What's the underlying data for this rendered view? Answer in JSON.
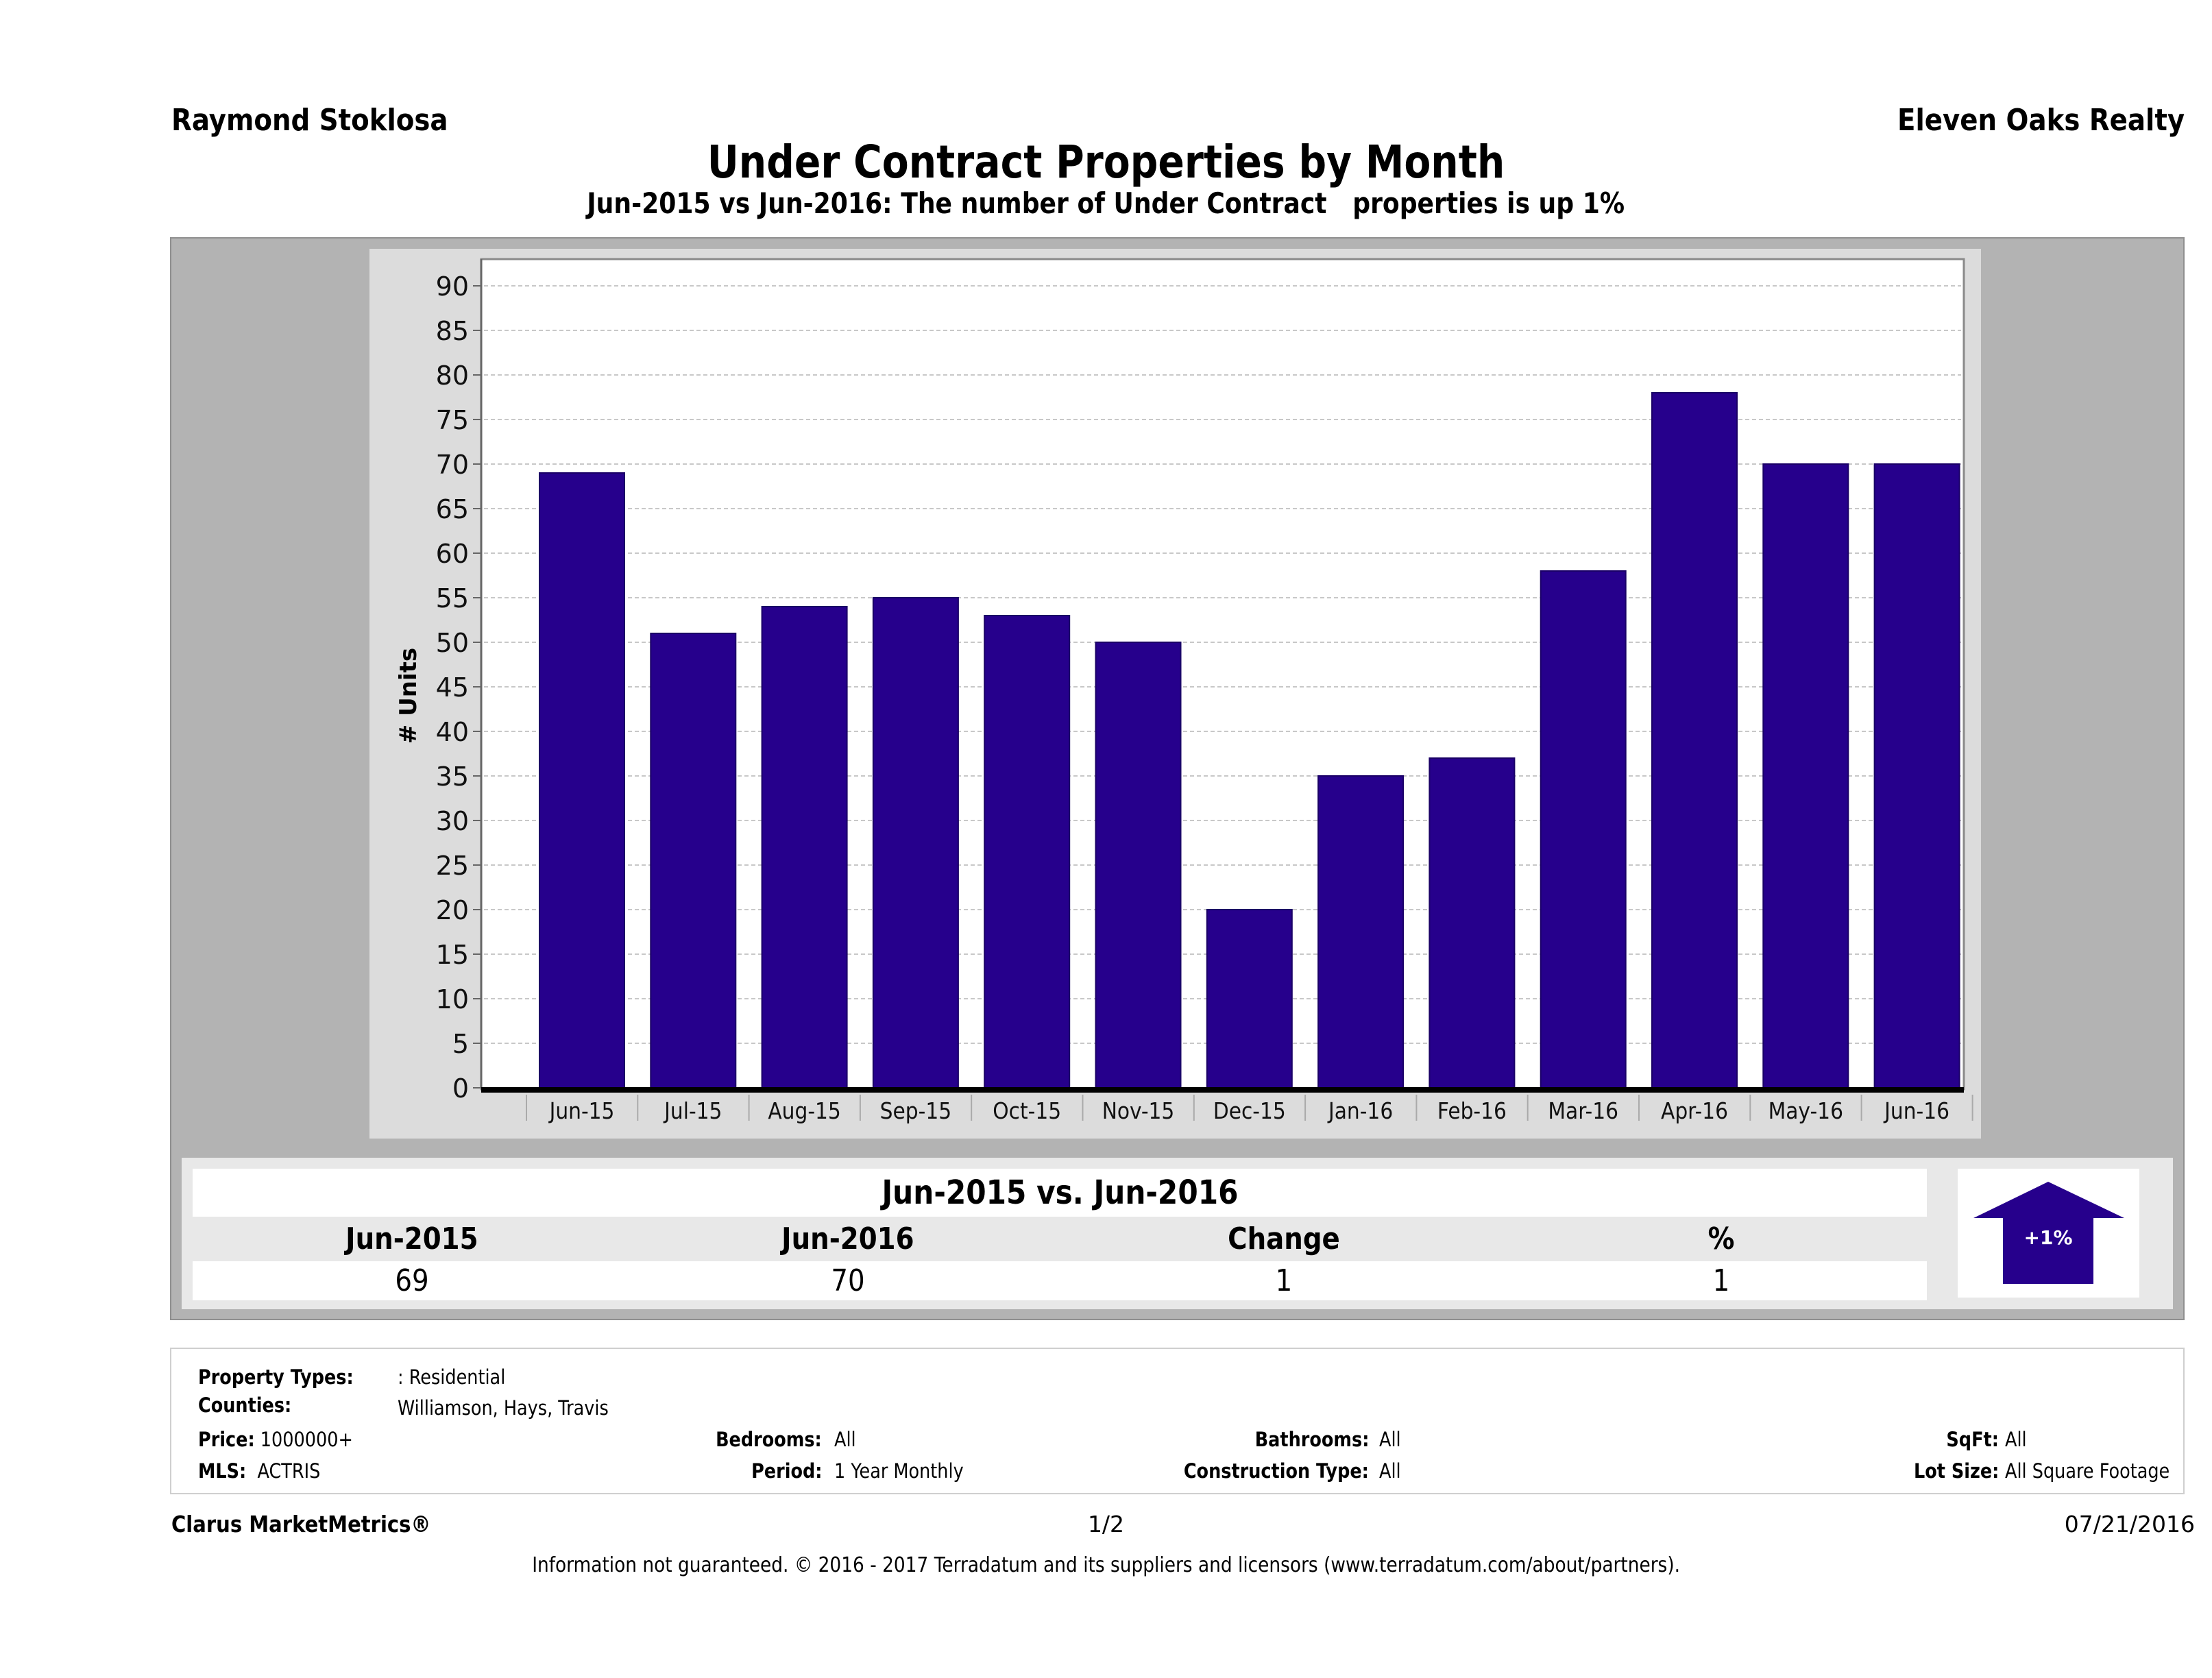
{
  "header": {
    "agent_name": "Raymond Stoklosa",
    "brokerage": "Eleven Oaks Realty",
    "title": "Under Contract Properties by Month",
    "subtitle": "Jun-2015 vs Jun-2016: The number of Under Contract   properties is up 1%"
  },
  "chart_data": {
    "type": "bar",
    "title": "Under Contract Properties by Month",
    "subtitle": "Jun-2015 vs Jun-2016: The number of Under Contract   properties is up 1%",
    "xlabel": "",
    "ylabel": "# Units",
    "categories": [
      "Jun-15",
      "Jul-15",
      "Aug-15",
      "Sep-15",
      "Oct-15",
      "Nov-15",
      "Dec-15",
      "Jan-16",
      "Feb-16",
      "Mar-16",
      "Apr-16",
      "May-16",
      "Jun-16"
    ],
    "values": [
      69,
      51,
      54,
      55,
      53,
      50,
      20,
      35,
      37,
      58,
      78,
      70,
      70
    ],
    "ylim": [
      0,
      90
    ],
    "yticks": [
      0,
      5,
      10,
      15,
      20,
      25,
      30,
      35,
      40,
      45,
      50,
      55,
      60,
      65,
      70,
      75,
      80,
      85,
      90
    ],
    "grid": true,
    "legend": "none",
    "bar_color": "#26008c"
  },
  "comparison": {
    "title": "Jun-2015 vs. Jun-2016",
    "headers": [
      "Jun-2015",
      "Jun-2016",
      "Change",
      "%"
    ],
    "values": [
      "69",
      "70",
      "1",
      "1"
    ],
    "arrow_label": "+1%",
    "arrow_direction": "up",
    "arrow_color": "#26008c"
  },
  "filters": {
    "property_types_label": "Property Types:",
    "property_types_value": ": Residential",
    "counties_label": "Counties:",
    "counties_value": "Williamson, Hays, Travis",
    "price_label": "Price:",
    "price_value": "1000000+",
    "mls_label": "MLS:",
    "mls_value": "ACTRIS",
    "bedrooms_label": "Bedrooms:",
    "bedrooms_value": "All",
    "period_label": "Period:",
    "period_value": "1 Year Monthly",
    "bathrooms_label": "Bathrooms:",
    "bathrooms_value": "All",
    "construction_label": "Construction Type:",
    "construction_value": "All",
    "sqft_label": "SqFt:",
    "sqft_value": "All",
    "lot_size_label": "Lot Size:",
    "lot_size_value": "All Square Footage"
  },
  "footer": {
    "brand": "Clarus MarketMetrics®",
    "page": "1/2",
    "date": "07/21/2016",
    "disclaimer": "Information not guaranteed. © 2016 - 2017 Terradatum and its suppliers and licensors (www.terradatum.com/about/partners)."
  }
}
